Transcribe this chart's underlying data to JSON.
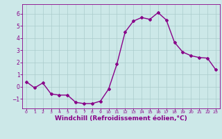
{
  "x": [
    0,
    1,
    2,
    3,
    4,
    5,
    6,
    7,
    8,
    9,
    10,
    11,
    12,
    13,
    14,
    15,
    16,
    17,
    18,
    19,
    20,
    21,
    22,
    23
  ],
  "y": [
    0.4,
    -0.1,
    0.3,
    -0.6,
    -0.7,
    -0.7,
    -1.3,
    -1.4,
    -1.4,
    -1.2,
    -0.2,
    1.85,
    4.5,
    5.4,
    5.7,
    5.55,
    6.1,
    5.5,
    3.65,
    2.85,
    2.55,
    2.4,
    2.35,
    1.4
  ],
  "line_color": "#880088",
  "marker": "D",
  "markersize": 2.0,
  "linewidth": 1.0,
  "xlabel": "Windchill (Refroidissement éolien,°C)",
  "xlabel_fontsize": 6.5,
  "bg_color": "#cce8e8",
  "grid_color": "#aacccc",
  "axis_color": "#880088",
  "tick_color": "#880088",
  "ylim": [
    -1.8,
    6.8
  ],
  "xlim": [
    -0.5,
    23.5
  ],
  "yticks": [
    -1,
    0,
    1,
    2,
    3,
    4,
    5,
    6
  ],
  "xticks": [
    0,
    1,
    2,
    3,
    4,
    5,
    6,
    7,
    8,
    9,
    10,
    11,
    12,
    13,
    14,
    15,
    16,
    17,
    18,
    19,
    20,
    21,
    22,
    23
  ]
}
